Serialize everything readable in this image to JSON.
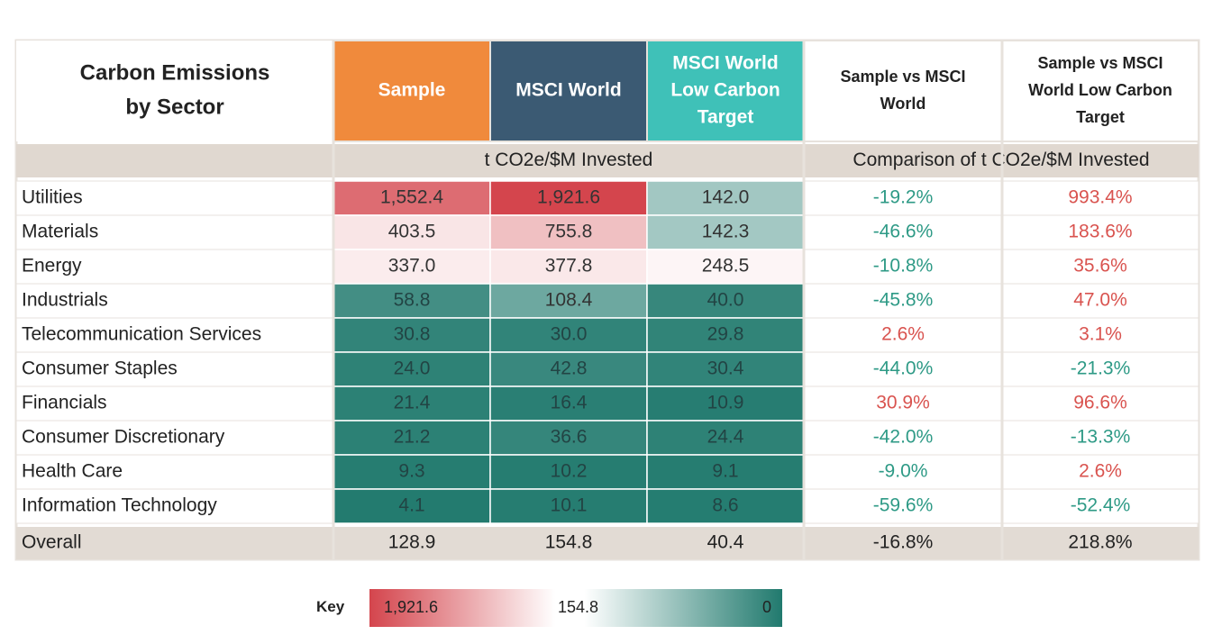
{
  "chart_data": {
    "type": "heatmap",
    "title": "Carbon Emissions by Sector",
    "columns": [
      {
        "label": "Sample",
        "color": "#f08a3c"
      },
      {
        "label": "MSCI World",
        "color": "#3b5a73"
      },
      {
        "label": "MSCI World Low Carbon Target",
        "color": "#3fc1b8"
      },
      {
        "label": "Sample vs MSCI World",
        "color": "#ffffff"
      },
      {
        "label": "Sample vs MSCI World Low Carbon Target",
        "color": "#ffffff"
      }
    ],
    "subheaders": {
      "emissions": "t CO2e/$M Invested",
      "comparison": "Comparison of t CO2e/$M Invested"
    },
    "rows": [
      {
        "sector": "Utilities",
        "values": [
          1552.4,
          1921.6,
          142.0
        ],
        "display": [
          "1,552.4",
          "1,921.6",
          "142.0"
        ],
        "comparison": [
          "-19.2%",
          "993.4%"
        ]
      },
      {
        "sector": "Materials",
        "values": [
          403.5,
          755.8,
          142.3
        ],
        "display": [
          "403.5",
          "755.8",
          "142.3"
        ],
        "comparison": [
          "-46.6%",
          "183.6%"
        ]
      },
      {
        "sector": "Energy",
        "values": [
          337.0,
          377.8,
          248.5
        ],
        "display": [
          "337.0",
          "377.8",
          "248.5"
        ],
        "comparison": [
          "-10.8%",
          "35.6%"
        ]
      },
      {
        "sector": "Industrials",
        "values": [
          58.8,
          108.4,
          40.0
        ],
        "display": [
          "58.8",
          "108.4",
          "40.0"
        ],
        "comparison": [
          "-45.8%",
          "47.0%"
        ]
      },
      {
        "sector": "Telecommunication Services",
        "values": [
          30.8,
          30.0,
          29.8
        ],
        "display": [
          "30.8",
          "30.0",
          "29.8"
        ],
        "comparison": [
          "2.6%",
          "3.1%"
        ]
      },
      {
        "sector": "Consumer Staples",
        "values": [
          24.0,
          42.8,
          30.4
        ],
        "display": [
          "24.0",
          "42.8",
          "30.4"
        ],
        "comparison": [
          "-44.0%",
          "-21.3%"
        ]
      },
      {
        "sector": "Financials",
        "values": [
          21.4,
          16.4,
          10.9
        ],
        "display": [
          "21.4",
          "16.4",
          "10.9"
        ],
        "comparison": [
          "30.9%",
          "96.6%"
        ]
      },
      {
        "sector": "Consumer Discretionary",
        "values": [
          21.2,
          36.6,
          24.4
        ],
        "display": [
          "21.2",
          "36.6",
          "24.4"
        ],
        "comparison": [
          "-42.0%",
          "-13.3%"
        ]
      },
      {
        "sector": "Health Care",
        "values": [
          9.3,
          10.2,
          9.1
        ],
        "display": [
          "9.3",
          "10.2",
          "9.1"
        ],
        "comparison": [
          "-9.0%",
          "2.6%"
        ]
      },
      {
        "sector": "Information Technology",
        "values": [
          4.1,
          10.1,
          8.6
        ],
        "display": [
          "4.1",
          "10.1",
          "8.6"
        ],
        "comparison": [
          "-59.6%",
          "-52.4%"
        ]
      }
    ],
    "overall": {
      "sector": "Overall",
      "display": [
        "128.9",
        "154.8",
        "40.4"
      ],
      "comparison": [
        "-16.8%",
        "218.8%"
      ]
    },
    "key": {
      "label": "Key",
      "max": "1,921.6",
      "mid": "154.8",
      "min": "0",
      "max_value": 1921.6,
      "mid_value": 154.8,
      "min_value": 0
    },
    "colors": {
      "high": "#d4454d",
      "mid": "#ffffff",
      "low": "#217a6e",
      "positive_text": "#d9534f",
      "negative_text": "#2e9a86",
      "header_bg": "#e0d8d0",
      "overall_bg": "#e2dbd4"
    }
  }
}
